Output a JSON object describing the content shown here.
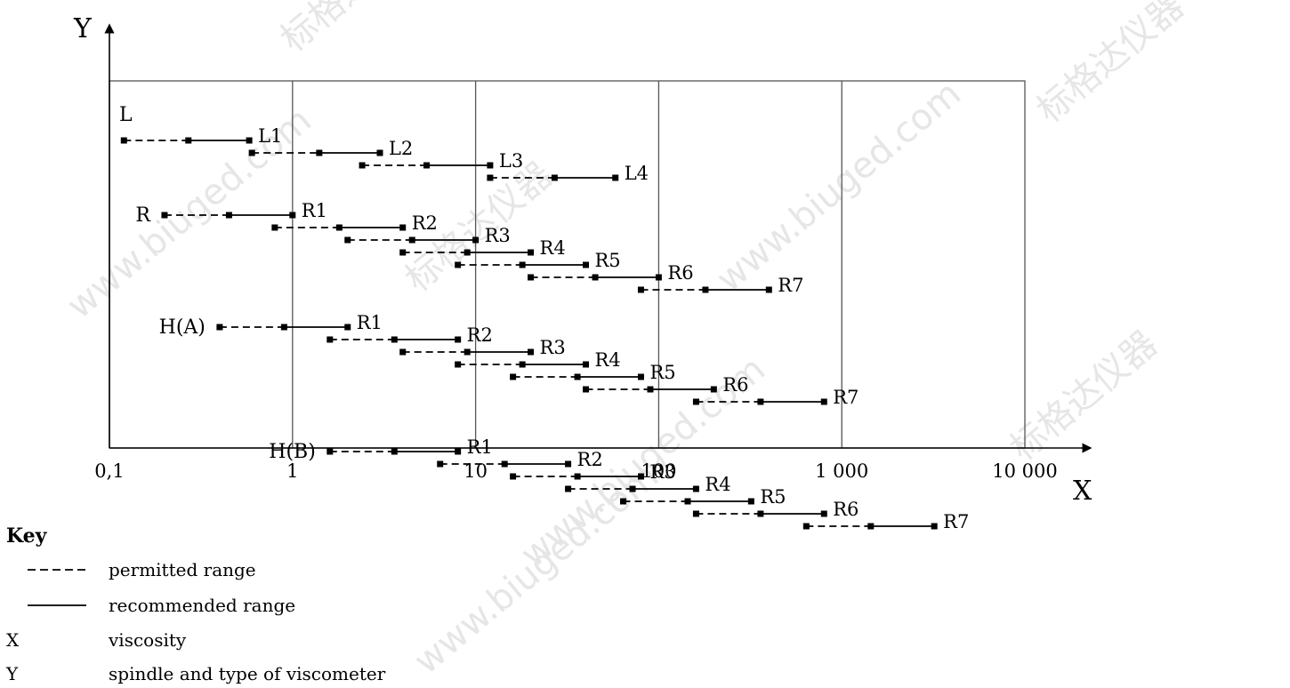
{
  "chart_data": {
    "type": "line",
    "xlabel": "X",
    "ylabel": "Y",
    "x_scale": "log",
    "xlim": [
      0.1,
      10000
    ],
    "x_tick_labels": [
      {
        "value": 0.1,
        "label": "0,1"
      },
      {
        "value": 1,
        "label": "1"
      },
      {
        "value": 10,
        "label": "10"
      },
      {
        "value": 100,
        "label": "100"
      },
      {
        "value": 1000,
        "label": "1 000"
      },
      {
        "value": 10000,
        "label": "10 000"
      }
    ],
    "grid": true,
    "groups": [
      {
        "name": "L",
        "spindles": [
          {
            "label": "L1",
            "permitted": [
              0.12,
              0.27
            ],
            "recommended": [
              0.27,
              0.58
            ]
          },
          {
            "label": "L2",
            "permitted": [
              0.6,
              1.4
            ],
            "recommended": [
              1.4,
              3
            ]
          },
          {
            "label": "L3",
            "permitted": [
              2.4,
              5.4
            ],
            "recommended": [
              5.4,
              12
            ]
          },
          {
            "label": "L4",
            "permitted": [
              12,
              27
            ],
            "recommended": [
              27,
              58
            ]
          }
        ]
      },
      {
        "name": "R",
        "spindles": [
          {
            "label": "R1",
            "permitted": [
              0.2,
              0.45
            ],
            "recommended": [
              0.45,
              1
            ]
          },
          {
            "label": "R2",
            "permitted": [
              0.8,
              1.8
            ],
            "recommended": [
              1.8,
              4
            ]
          },
          {
            "label": "R3",
            "permitted": [
              2,
              4.5
            ],
            "recommended": [
              4.5,
              10
            ]
          },
          {
            "label": "R4",
            "permitted": [
              4,
              9
            ],
            "recommended": [
              9,
              20
            ]
          },
          {
            "label": "R5",
            "permitted": [
              8,
              18
            ],
            "recommended": [
              18,
              40
            ]
          },
          {
            "label": "R6",
            "permitted": [
              20,
              45
            ],
            "recommended": [
              45,
              100
            ]
          },
          {
            "label": "R7",
            "permitted": [
              80,
              180
            ],
            "recommended": [
              180,
              400
            ]
          }
        ]
      },
      {
        "name": "H(A)",
        "spindles": [
          {
            "label": "R1",
            "permitted": [
              0.4,
              0.9
            ],
            "recommended": [
              0.9,
              2
            ]
          },
          {
            "label": "R2",
            "permitted": [
              1.6,
              3.6
            ],
            "recommended": [
              3.6,
              8
            ]
          },
          {
            "label": "R3",
            "permitted": [
              4,
              9
            ],
            "recommended": [
              9,
              20
            ]
          },
          {
            "label": "R4",
            "permitted": [
              8,
              18
            ],
            "recommended": [
              18,
              40
            ]
          },
          {
            "label": "R5",
            "permitted": [
              16,
              36
            ],
            "recommended": [
              36,
              80
            ]
          },
          {
            "label": "R6",
            "permitted": [
              40,
              90
            ],
            "recommended": [
              90,
              200
            ]
          },
          {
            "label": "R7",
            "permitted": [
              160,
              360
            ],
            "recommended": [
              360,
              800
            ]
          }
        ]
      },
      {
        "name": "H(B)",
        "spindles": [
          {
            "label": "R1",
            "permitted": [
              1.6,
              3.6
            ],
            "recommended": [
              3.6,
              8
            ]
          },
          {
            "label": "R2",
            "permitted": [
              6.4,
              14.4
            ],
            "recommended": [
              14.4,
              32
            ]
          },
          {
            "label": "R3",
            "permitted": [
              16,
              36
            ],
            "recommended": [
              36,
              80
            ]
          },
          {
            "label": "R4",
            "permitted": [
              32,
              72
            ],
            "recommended": [
              72,
              160
            ]
          },
          {
            "label": "R5",
            "permitted": [
              64,
              144
            ],
            "recommended": [
              144,
              320
            ]
          },
          {
            "label": "R6",
            "permitted": [
              160,
              360
            ],
            "recommended": [
              360,
              800
            ]
          },
          {
            "label": "R7",
            "permitted": [
              640,
              1440
            ],
            "recommended": [
              1440,
              3200
            ]
          }
        ]
      }
    ]
  },
  "key": {
    "title": "Key",
    "items": [
      {
        "symbol": "dashed-line",
        "text": "permitted range"
      },
      {
        "symbol": "solid-line",
        "text": "recommended range"
      },
      {
        "symbol": "X",
        "text": "viscosity"
      },
      {
        "symbol": "Y",
        "text": "spindle and type of viscometer"
      }
    ]
  },
  "watermarks": [
    "标格达仪器",
    "www.biuged.com"
  ]
}
